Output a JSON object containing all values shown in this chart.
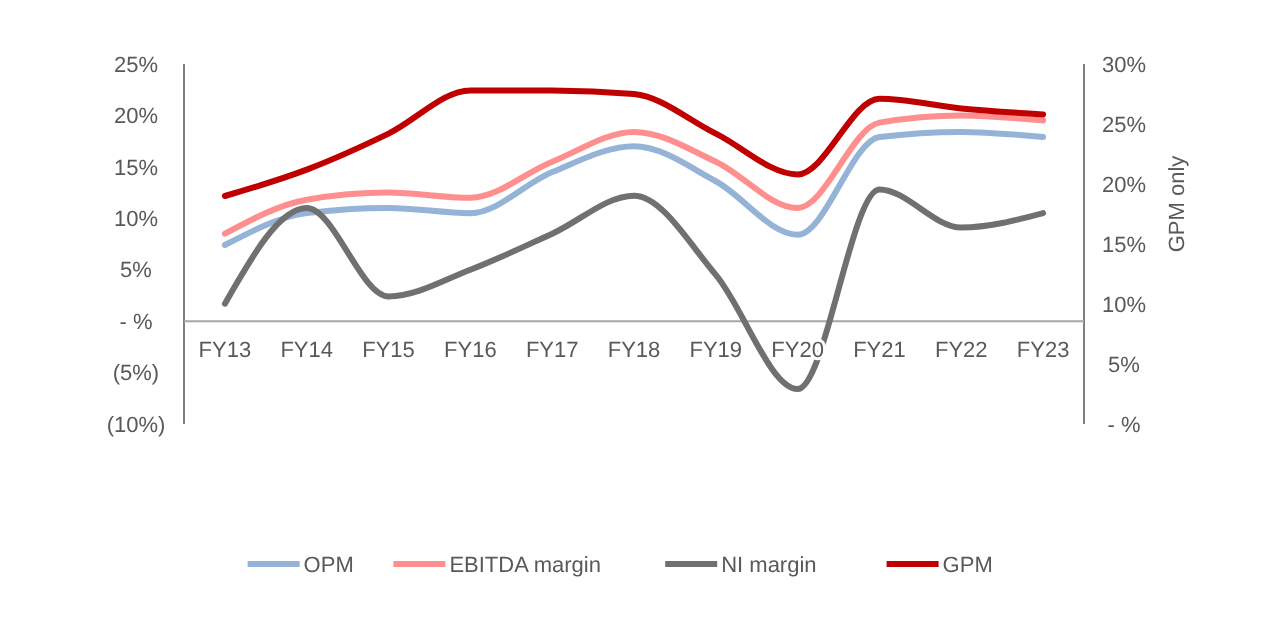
{
  "chart_data": {
    "type": "line",
    "y2label": "GPM only",
    "categories": [
      "FY13",
      "FY14",
      "FY15",
      "FY16",
      "FY17",
      "FY18",
      "FY19",
      "FY20",
      "FY21",
      "FY22",
      "FY23"
    ],
    "series": [
      {
        "name": "OPM",
        "color": "#95b3d7",
        "values": [
          7.4,
          10.5,
          11,
          10.5,
          14.5,
          17,
          13.6,
          8.4,
          17.9,
          18.4,
          17.9
        ]
      },
      {
        "name": "EBITDA margin",
        "color": "#ff8f8f",
        "values": [
          8.5,
          11.8,
          12.5,
          12,
          15.5,
          18.4,
          15.5,
          11,
          19.3,
          20,
          19.5
        ]
      },
      {
        "name": "NI margin",
        "color": "#707070",
        "values": [
          1.7,
          11,
          2.4,
          5,
          8.5,
          12.2,
          4.5,
          -6.6,
          12.8,
          9.1,
          10.5
        ]
      },
      {
        "name": "GPM",
        "color": "#c00000",
        "axis": "y2",
        "values": [
          19,
          21.2,
          24.2,
          27.8,
          27.8,
          27.5,
          24.2,
          20.8,
          27.1,
          26.3,
          25.8
        ]
      }
    ],
    "ylim": [
      -10,
      25
    ],
    "yticks": [
      {
        "value": -10,
        "label": "(10%)"
      },
      {
        "value": -5,
        "label": "(5%)"
      },
      {
        "value": 0,
        "label": "- %"
      },
      {
        "value": 5,
        "label": "5%"
      },
      {
        "value": 10,
        "label": "10%"
      },
      {
        "value": 15,
        "label": "15%"
      },
      {
        "value": 20,
        "label": "20%"
      },
      {
        "value": 25,
        "label": "25%"
      }
    ],
    "y2lim": [
      0,
      30
    ],
    "y2ticks": [
      {
        "value": 0,
        "label": "- %"
      },
      {
        "value": 5,
        "label": "5%"
      },
      {
        "value": 10,
        "label": "10%"
      },
      {
        "value": 15,
        "label": "15%"
      },
      {
        "value": 20,
        "label": "20%"
      },
      {
        "value": 25,
        "label": "25%"
      },
      {
        "value": 30,
        "label": "30%"
      }
    ],
    "grid": false,
    "legend": "bottom",
    "marker": "none",
    "line_style": "solid"
  }
}
